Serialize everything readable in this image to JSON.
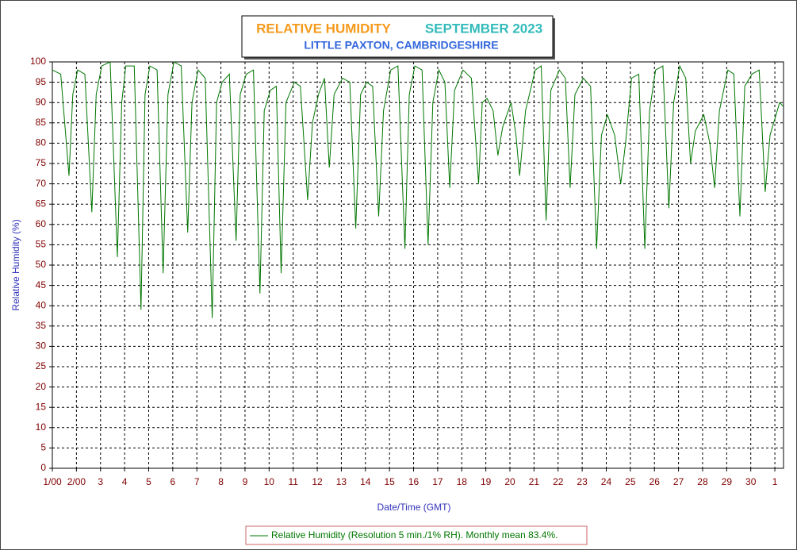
{
  "chart_data": {
    "type": "line",
    "title": "RELATIVE HUMIDITY",
    "title_color": "#f59a1c",
    "period": "SEPTEMBER 2023",
    "period_color": "#33bbbb",
    "subtitle": "LITTLE PAXTON, CAMBRIDGESHIRE",
    "subtitle_color": "#3366dd",
    "y_label": "Relative Humidity (%)",
    "x_label": "Date/Time (GMT)",
    "grid": true,
    "xlim": [
      1,
      31.36
    ],
    "ylim": [
      0,
      100
    ],
    "xticks": [
      {
        "value": 1,
        "label": "1/00"
      },
      {
        "value": 2,
        "label": "2/00"
      },
      3,
      4,
      5,
      6,
      7,
      8,
      9,
      10,
      11,
      12,
      13,
      14,
      15,
      16,
      17,
      18,
      19,
      20,
      21,
      22,
      23,
      24,
      25,
      26,
      27,
      28,
      29,
      30,
      {
        "value": 31,
        "label": "1"
      }
    ],
    "yticks": [
      0,
      5,
      10,
      15,
      20,
      25,
      30,
      35,
      40,
      45,
      50,
      55,
      60,
      65,
      70,
      75,
      80,
      85,
      90,
      95,
      100
    ],
    "x": [
      1.0,
      1.35,
      1.69,
      1.85,
      2.05,
      2.35,
      2.64,
      2.82,
      3.05,
      3.4,
      3.7,
      3.88,
      4.05,
      4.4,
      4.68,
      4.85,
      5.05,
      5.35,
      5.6,
      5.8,
      6.05,
      6.35,
      6.62,
      6.8,
      7.05,
      7.35,
      7.64,
      7.82,
      8.05,
      8.35,
      8.63,
      8.8,
      9.05,
      9.35,
      9.62,
      9.8,
      10.05,
      10.3,
      10.5,
      10.7,
      11.05,
      11.3,
      11.6,
      11.8,
      12.05,
      12.3,
      12.5,
      12.7,
      13.05,
      13.35,
      13.6,
      13.8,
      14.05,
      14.3,
      14.55,
      14.75,
      15.05,
      15.35,
      15.64,
      15.82,
      16.05,
      16.35,
      16.6,
      16.8,
      17.05,
      17.3,
      17.5,
      17.7,
      18.05,
      18.4,
      18.7,
      18.85,
      19.05,
      19.3,
      19.5,
      19.7,
      20.05,
      20.25,
      20.4,
      20.65,
      21.05,
      21.3,
      21.5,
      21.7,
      22.05,
      22.3,
      22.5,
      22.7,
      23.05,
      23.35,
      23.6,
      23.8,
      24.05,
      24.35,
      24.6,
      24.8,
      25.05,
      25.35,
      25.6,
      25.8,
      26.05,
      26.35,
      26.6,
      26.8,
      27.05,
      27.3,
      27.5,
      27.7,
      28.05,
      28.3,
      28.5,
      28.7,
      29.05,
      29.3,
      29.55,
      29.75,
      30.05,
      30.35,
      30.6,
      30.8,
      31.0,
      31.2,
      31.36
    ],
    "series": [
      {
        "name": "Relative Humidity (Resolution 5 min./1% RH). Monthly mean 83.4%.",
        "color": "#007700",
        "values": [
          98,
          97,
          72,
          92,
          98,
          97,
          63,
          92,
          99,
          100,
          52,
          90,
          99,
          99,
          39,
          92,
          99,
          98,
          48,
          92,
          100,
          99,
          58,
          90,
          98,
          96,
          37,
          90,
          95,
          97,
          56,
          92,
          97,
          98,
          43,
          88,
          93,
          94,
          48,
          90,
          95,
          94,
          66,
          85,
          92,
          96,
          74,
          92,
          96,
          95,
          59,
          92,
          95,
          94,
          62,
          88,
          98,
          99,
          54,
          92,
          99,
          98,
          55,
          90,
          98,
          95,
          69,
          93,
          98,
          96,
          70,
          90,
          91,
          88,
          77,
          84,
          90,
          82,
          72,
          88,
          98,
          99,
          61,
          93,
          98,
          96,
          69,
          92,
          96,
          94,
          54,
          82,
          87,
          82,
          70,
          80,
          96,
          97,
          54,
          88,
          98,
          99,
          64,
          90,
          99,
          96,
          75,
          83,
          87,
          80,
          69,
          88,
          98,
          97,
          62,
          94,
          97,
          98,
          68,
          82,
          86,
          90,
          89
        ]
      }
    ]
  }
}
